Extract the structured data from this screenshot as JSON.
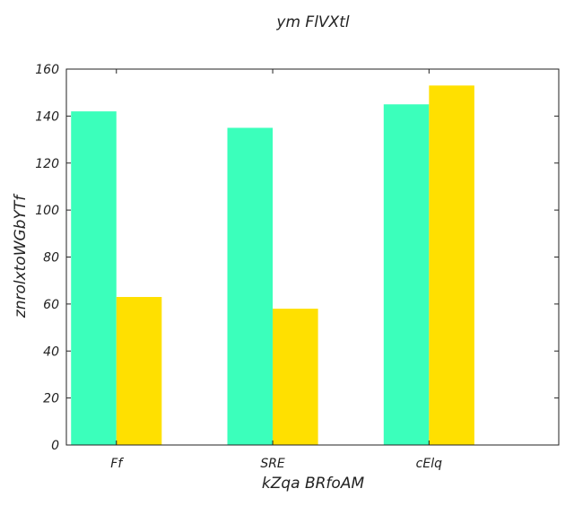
{
  "chart_data": {
    "type": "bar",
    "title": "ym FlVXtl",
    "xlabel": "kZqa BRfoAM",
    "ylabel": "znrolxtoWGbYTf",
    "categories": [
      "Ff",
      "SRE",
      "cElq"
    ],
    "series": [
      {
        "color": "#3bffbb",
        "values": [
          142,
          135,
          145
        ]
      },
      {
        "color": "#ffe000",
        "values": [
          63,
          58,
          153
        ]
      }
    ],
    "ylim": [
      0,
      160
    ],
    "yticks": [
      0,
      20,
      40,
      60,
      80,
      100,
      120,
      140,
      160
    ],
    "grid": false,
    "legend": "none"
  }
}
